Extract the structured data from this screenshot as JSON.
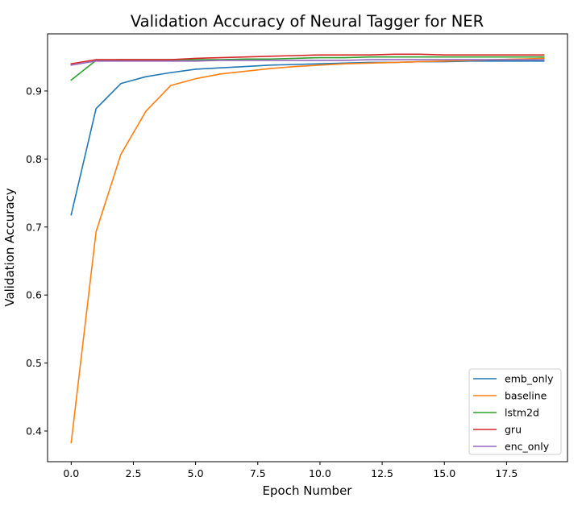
{
  "chart_data": {
    "type": "line",
    "title": "Validation Accuracy of Neural Tagger for NER",
    "xlabel": "Epoch Number",
    "ylabel": "Validation Accuracy",
    "xlim": [
      -0.95,
      19.95
    ],
    "ylim": [
      0.355,
      0.984
    ],
    "xticks": [
      0.0,
      2.5,
      5.0,
      7.5,
      10.0,
      12.5,
      15.0,
      17.5
    ],
    "xtick_labels": [
      "0.0",
      "2.5",
      "5.0",
      "7.5",
      "10.0",
      "12.5",
      "15.0",
      "17.5"
    ],
    "yticks": [
      0.4,
      0.5,
      0.6,
      0.7,
      0.8,
      0.9
    ],
    "ytick_labels": [
      "0.4",
      "0.5",
      "0.6",
      "0.7",
      "0.8",
      "0.9"
    ],
    "grid": false,
    "legend_position": "lower-right",
    "x": [
      0,
      1,
      2,
      3,
      4,
      5,
      6,
      7,
      8,
      9,
      10,
      11,
      12,
      13,
      14,
      15,
      16,
      17,
      18,
      19
    ],
    "series": [
      {
        "name": "emb_only",
        "color": "#1f77b4",
        "values": [
          0.718,
          0.874,
          0.911,
          0.921,
          0.927,
          0.932,
          0.934,
          0.936,
          0.938,
          0.939,
          0.94,
          0.941,
          0.942,
          0.942,
          0.943,
          0.943,
          0.944,
          0.944,
          0.944,
          0.944
        ]
      },
      {
        "name": "baseline",
        "color": "#ff7f0e",
        "values": [
          0.383,
          0.693,
          0.807,
          0.87,
          0.908,
          0.918,
          0.925,
          0.929,
          0.933,
          0.936,
          0.938,
          0.94,
          0.941,
          0.942,
          0.943,
          0.944,
          0.945,
          0.946,
          0.947,
          0.948
        ]
      },
      {
        "name": "lstm2d",
        "color": "#2ca02c",
        "values": [
          0.916,
          0.945,
          0.946,
          0.946,
          0.946,
          0.946,
          0.946,
          0.947,
          0.947,
          0.948,
          0.949,
          0.949,
          0.95,
          0.95,
          0.95,
          0.95,
          0.95,
          0.95,
          0.95,
          0.95
        ]
      },
      {
        "name": "gru",
        "color": "#d62728",
        "values": [
          0.94,
          0.946,
          0.946,
          0.946,
          0.946,
          0.948,
          0.949,
          0.95,
          0.951,
          0.952,
          0.953,
          0.953,
          0.953,
          0.954,
          0.954,
          0.953,
          0.953,
          0.953,
          0.953,
          0.953
        ]
      },
      {
        "name": "enc_only",
        "color": "#9467bd",
        "values": [
          0.938,
          0.944,
          0.944,
          0.944,
          0.944,
          0.944,
          0.945,
          0.945,
          0.945,
          0.945,
          0.945,
          0.945,
          0.946,
          0.946,
          0.946,
          0.946,
          0.946,
          0.946,
          0.946,
          0.946
        ]
      }
    ]
  }
}
